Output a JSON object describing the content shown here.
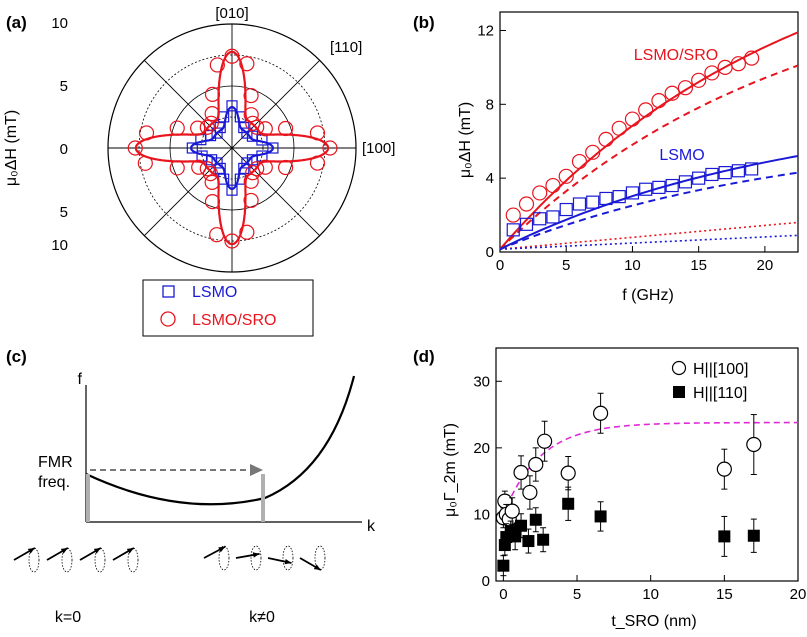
{
  "panels": {
    "a": {
      "label": "(a)"
    },
    "b": {
      "label": "(b)"
    },
    "c": {
      "label": "(c)"
    },
    "d": {
      "label": "(d)"
    }
  },
  "chart_data": [
    {
      "type": "polar",
      "title": "",
      "ylabel_main": "μ₀ΔH (mT)",
      "rlim": [
        0,
        10
      ],
      "radial_ticks": [
        "10",
        "5",
        "0",
        "5",
        "10"
      ],
      "direction_labels": {
        "top": "[010]",
        "diag": "[110]",
        "right": "[100]"
      },
      "grid": true,
      "legend": {
        "placement": "below",
        "entries": [
          "LSMO",
          "LSMO/SRO"
        ]
      },
      "series": [
        {
          "name": "LSMO",
          "color": "#1a1ad6",
          "marker": "square",
          "angles_deg": [
            0,
            15,
            30,
            45,
            60,
            75,
            90,
            105,
            120,
            135,
            150,
            165,
            180,
            195,
            210,
            225,
            240,
            255,
            270,
            285,
            300,
            315,
            330,
            345
          ],
          "values": [
            3.3,
            2.5,
            1.9,
            1.7,
            1.9,
            2.6,
            3.4,
            2.6,
            1.9,
            1.7,
            2.0,
            2.6,
            3.2,
            2.5,
            1.9,
            1.7,
            1.9,
            2.6,
            3.4,
            2.6,
            1.9,
            1.7,
            1.9,
            2.5
          ],
          "fit_amplitude": 1.7,
          "fit_anisotropy": 1.6
        },
        {
          "name": "LSMO/SRO",
          "color": "#e8141e",
          "marker": "circle",
          "angles_deg": [
            0,
            10,
            20,
            30,
            40,
            50,
            60,
            70,
            80,
            90,
            100,
            110,
            120,
            130,
            140,
            150,
            160,
            170,
            180,
            190,
            200,
            210,
            220,
            230,
            240,
            250,
            260,
            270,
            280,
            290,
            300,
            310,
            320,
            330,
            340,
            350
          ],
          "values": [
            7.9,
            7.0,
            4.6,
            3.1,
            2.6,
            2.6,
            3.1,
            4.5,
            6.9,
            7.4,
            6.8,
            4.6,
            3.2,
            2.6,
            2.6,
            3.2,
            4.7,
            7.0,
            7.8,
            7.1,
            4.7,
            3.1,
            2.6,
            2.7,
            3.2,
            4.6,
            7.1,
            7.5,
            6.9,
            4.5,
            3.1,
            2.6,
            2.6,
            3.1,
            4.6,
            7.0
          ],
          "fit_amplitude": 2.55,
          "fit_anisotropy": 5.2
        }
      ]
    },
    {
      "type": "scatter",
      "title": "",
      "xlabel": "f (GHz)",
      "ylabel_main": "μ₀ΔH (mT)",
      "xlim": [
        0,
        22.5
      ],
      "ylim": [
        0,
        13
      ],
      "xticks": [
        0,
        5,
        10,
        15,
        20
      ],
      "yticks": [
        0,
        4,
        8,
        12
      ],
      "annotations": [
        "LSMO/SRO",
        "LSMO"
      ],
      "series": [
        {
          "name": "LSMO/SRO",
          "color": "#e8141e",
          "marker": "circle",
          "x": [
            1,
            2,
            3,
            4,
            5,
            6,
            7,
            8,
            9,
            10,
            11,
            12,
            13,
            14,
            15,
            16,
            17,
            18,
            19
          ],
          "y": [
            2.0,
            2.6,
            3.2,
            3.6,
            4.1,
            4.9,
            5.4,
            6.1,
            6.7,
            7.2,
            7.7,
            8.2,
            8.6,
            8.9,
            9.3,
            9.7,
            10.0,
            10.2,
            10.5
          ],
          "fit_solid_y_at_xmax": 11.9,
          "fit_dashed_y_at_xmax": 10.1,
          "dotted_y_at_xmax": 1.6
        },
        {
          "name": "LSMO",
          "color": "#1a1ad6",
          "marker": "square",
          "x": [
            1,
            2,
            3,
            4,
            5,
            6,
            7,
            8,
            9,
            10,
            11,
            12,
            13,
            14,
            15,
            16,
            17,
            18,
            19
          ],
          "y": [
            1.2,
            1.5,
            1.8,
            1.9,
            2.3,
            2.6,
            2.7,
            2.9,
            3.0,
            3.2,
            3.4,
            3.5,
            3.6,
            3.8,
            4.0,
            4.2,
            4.3,
            4.4,
            4.5
          ],
          "fit_solid_y_at_xmax": 5.2,
          "fit_dashed_y_at_xmax": 4.3,
          "dotted_y_at_xmax": 0.9
        }
      ]
    },
    {
      "type": "diagram",
      "title": "",
      "axis_labels": {
        "y": "f",
        "x": "k"
      },
      "fmr_label_line1": "FMR",
      "fmr_label_line2": "freq.",
      "k0_label": "k=0",
      "kn0_label": "k≠0"
    },
    {
      "type": "scatter",
      "title": "",
      "xlabel": "t_SRO (nm)",
      "ylabel_main": "μ₀Γ_2m (mT)",
      "xlim": [
        -0.5,
        20
      ],
      "ylim": [
        0,
        35
      ],
      "xticks": [
        0,
        5,
        10,
        15,
        20
      ],
      "yticks": [
        0,
        10,
        20,
        30
      ],
      "legend": {
        "placement": "top-right",
        "entries": [
          "H||[100]",
          "H||[110]"
        ]
      },
      "series": [
        {
          "name": "H||[100]",
          "color": "#000000",
          "marker": "open-circle",
          "x": [
            0,
            0.1,
            0.2,
            0.4,
            0.6,
            1.2,
            1.8,
            2.2,
            2.8,
            4.4,
            6.6,
            15.0,
            17.0
          ],
          "y": [
            9.5,
            12.0,
            10.0,
            9.3,
            10.5,
            16.3,
            13.3,
            17.5,
            21.0,
            16.2,
            25.2,
            16.8,
            20.5
          ],
          "err": [
            1.5,
            1.5,
            1.5,
            1.5,
            2.0,
            2.5,
            2.5,
            2.5,
            3.0,
            2.5,
            3.0,
            3.0,
            4.5
          ]
        },
        {
          "name": "H||[110]",
          "color": "#000000",
          "marker": "filled-square",
          "x": [
            0,
            0.1,
            0.2,
            0.5,
            0.8,
            1.2,
            1.7,
            2.2,
            2.7,
            4.4,
            6.6,
            15.0,
            17.0
          ],
          "y": [
            2.3,
            5.4,
            6.6,
            7.5,
            6.7,
            8.3,
            6.0,
            9.2,
            6.2,
            11.6,
            9.7,
            6.7,
            6.8
          ],
          "err": [
            1.5,
            1.5,
            2.0,
            1.5,
            2.0,
            1.8,
            1.8,
            1.8,
            1.8,
            2.5,
            2.2,
            3.0,
            2.5
          ]
        },
        {
          "name": "",
          "color": "#e02ad8",
          "line": "dashed",
          "model": "saturation",
          "y0": 10.0,
          "y_inf": 23.8,
          "length": 2.5
        }
      ]
    }
  ]
}
